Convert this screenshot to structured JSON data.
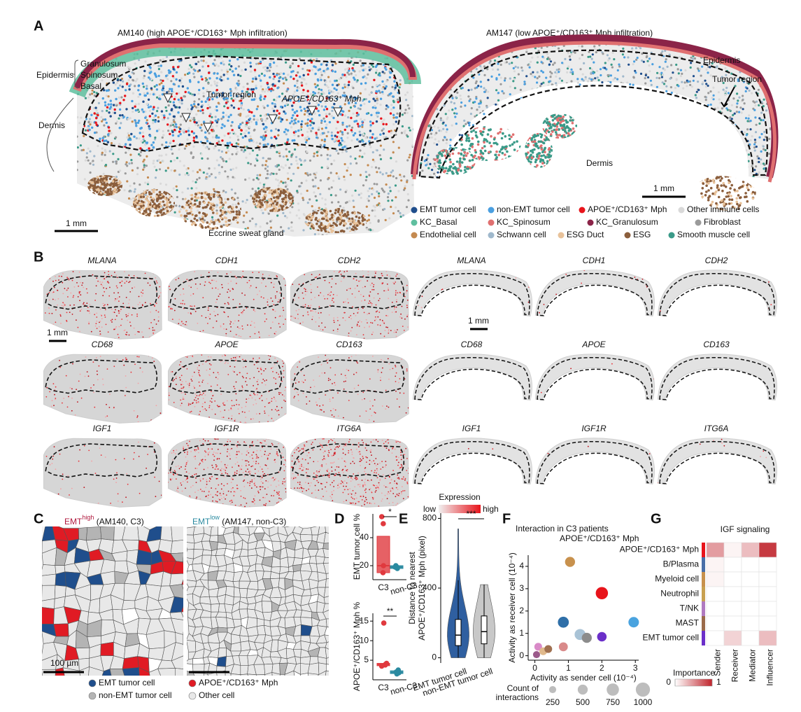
{
  "figure": {
    "panel_labels": [
      "A",
      "B",
      "C",
      "D",
      "E",
      "F",
      "G"
    ],
    "a": {
      "left_title": "AM140 (high APOE⁺/CD163⁺ Mph infiltration)",
      "right_title": "AM147 (low APOE⁺/CD163⁺ Mph infiltration)",
      "layers": [
        "Granulosum",
        "Spinosum",
        "Basal"
      ],
      "epidermis": "Epidermis",
      "dermis": "Dermis",
      "tumor_region": "Tumor region",
      "mph": "APOE⁺/CD163⁺ Mph",
      "sweat": "Eccrine sweat gland",
      "scale": "1 mm",
      "legend": [
        {
          "name": "EMT tumor cell",
          "color": "#1f4e8c"
        },
        {
          "name": "non-EMT tumor cell",
          "color": "#4a9fe0"
        },
        {
          "name": "APOE⁺/CD163⁺ Mph",
          "color": "#e8141b"
        },
        {
          "name": "Other immune cells",
          "color": "#d9d9d9"
        },
        {
          "name": "KC_Basal",
          "color": "#5fbf9f"
        },
        {
          "name": "KC_Spinosum",
          "color": "#e07070"
        },
        {
          "name": "KC_Granulosum",
          "color": "#8b2448"
        },
        {
          "name": "Fibroblast",
          "color": "#9a9a9a"
        },
        {
          "name": "Endothelial cell",
          "color": "#c48a50"
        },
        {
          "name": "Schwann cell",
          "color": "#9fb8cc"
        },
        {
          "name": "ESG Duct",
          "color": "#e8c29a"
        },
        {
          "name": "ESG",
          "color": "#8b5e3c"
        },
        {
          "name": "Smooth muscle cell",
          "color": "#3a9a88"
        }
      ]
    },
    "b": {
      "genes": [
        "MLANA",
        "CDH1",
        "CDH2",
        "CD68",
        "APOE",
        "CD163",
        "IGF1",
        "IGF1R",
        "ITG6A"
      ],
      "colorbar_title": "Expression",
      "low": "low",
      "high": "high"
    },
    "c": {
      "left_title": {
        "base": "EMT",
        "sup": "high",
        "rest": " (AM140, C3)",
        "color": "#b0193e"
      },
      "right_title": {
        "base": "EMT",
        "sup": "low",
        "rest": " (AM147, non-C3)",
        "color": "#2a8aa0"
      },
      "scale": "100 µm",
      "legend": [
        {
          "name": "EMT tumor cell",
          "color": "#1f4e8c"
        },
        {
          "name": "non-EMT tumor cell",
          "color": "#b4b4b4"
        },
        {
          "name": "APOE⁺/CD163⁺ Mph",
          "color": "#e01b24"
        },
        {
          "name": "Other cell",
          "color": "#e8e8e8"
        }
      ]
    }
  },
  "chart_data": [
    {
      "type": "strip_box",
      "ylabel": "EMT tumor cell %",
      "categories": [
        "C3",
        "non-C3"
      ],
      "colors": [
        "#e0393e",
        "#2a8aa0"
      ],
      "points": [
        [
          55,
          50,
          20,
          15
        ],
        [
          19,
          18,
          19,
          20
        ]
      ],
      "boxes": [
        {
          "q1": 15,
          "median": 20,
          "q3": 41
        },
        {
          "q1": 18,
          "median": 19,
          "q3": 20
        }
      ],
      "ylim": [
        10,
        57
      ],
      "yticks": [
        20,
        40
      ],
      "significance": "*"
    },
    {
      "type": "strip_box",
      "ylabel": "APOE⁺/CD163⁺ Mph %",
      "categories": [
        "C3",
        "non-C3"
      ],
      "colors": [
        "#e0393e",
        "#2a8aa0"
      ],
      "points": [
        [
          14.5,
          4,
          3.8,
          3.5,
          4.2
        ],
        [
          1.5,
          2,
          2.5,
          1.8
        ]
      ],
      "boxes": [
        {
          "q1": 3.6,
          "median": 3.9,
          "q3": 4.2
        },
        {
          "q1": 1.6,
          "median": 1.9,
          "q3": 2.3
        }
      ],
      "ylim": [
        0,
        17
      ],
      "yticks": [
        5,
        10,
        15
      ],
      "significance": "**"
    },
    {
      "type": "violin",
      "ylabel": [
        "Distance to nearest",
        "APOE⁺/CD163⁺ Mph (pixel)"
      ],
      "categories": [
        "EMT tumor cell",
        "non-EMT tumor cell"
      ],
      "colors": [
        "#2f5fa0",
        "#c8c8c8"
      ],
      "boxes": [
        {
          "min": 0,
          "q1": 70,
          "median": 130,
          "q3": 220,
          "max": 740
        },
        {
          "min": 0,
          "q1": 80,
          "median": 150,
          "q3": 240,
          "max": 420
        }
      ],
      "ylim": [
        -30,
        830
      ],
      "yticks": [
        0,
        400,
        800
      ],
      "significance": "***"
    },
    {
      "type": "scatter",
      "title": "Interaction in C3 patients",
      "xlabel": "Activity as sender cell (10⁻⁴)",
      "ylabel": "Activity as receiver cell (10⁻⁴)",
      "x": [
        1.05,
        2,
        0.85,
        2.95,
        1.35,
        1.55,
        2,
        0.85,
        0.1,
        0.25,
        0.4,
        0.05
      ],
      "y": [
        4.2,
        2.8,
        1.5,
        1.5,
        0.95,
        0.8,
        0.85,
        0.4,
        0.4,
        0.2,
        0.3,
        0.05
      ],
      "sizes": [
        500,
        750,
        600,
        550,
        600,
        500,
        450,
        400,
        300,
        300,
        300,
        250
      ],
      "colors": [
        "#c8914d",
        "#e8141b",
        "#2f6fa8",
        "#4aa3df",
        "#a9c3d6",
        "#8c8c8c",
        "#6b2fc9",
        "#d98a8a",
        "#d98ac8",
        "#e0b98c",
        "#a07050",
        "#9b5a8a"
      ],
      "annotation": "APOE⁺/CD163⁺ Mph",
      "annotation_color": "#e8141b",
      "xlim": [
        -0.2,
        3.1
      ],
      "ylim": [
        -0.2,
        4.5
      ],
      "xticks": [
        0,
        1,
        2,
        3
      ],
      "yticks": [
        0,
        1,
        2,
        3,
        4
      ],
      "size_legend_title": [
        "Count of",
        "interactions"
      ],
      "size_legend": [
        250,
        500,
        750,
        1000
      ]
    },
    {
      "type": "heatmap",
      "title": "IGF signaling",
      "rows": [
        "APOE⁺/CD163⁺ Mph",
        "B/Plasma",
        "Myeloid cell",
        "Neutrophil",
        "T/NK",
        "MAST",
        "EMT tumor cell"
      ],
      "row_colors": [
        "#e8141b",
        "#4a6fa8",
        "#c8914d",
        "#c8a050",
        "#b07ac0",
        "#9a6a4a",
        "#6b2fc9"
      ],
      "columns": [
        "Sender",
        "Receiver",
        "Mediator",
        "Influencer"
      ],
      "values": [
        [
          0.45,
          0.05,
          0.3,
          0.9
        ],
        [
          0.05,
          0,
          0,
          0
        ],
        [
          0.05,
          0,
          0,
          0
        ],
        [
          0,
          0,
          0,
          0
        ],
        [
          0,
          0,
          0,
          0
        ],
        [
          0,
          0,
          0,
          0
        ],
        [
          0,
          0.2,
          0,
          0.3
        ]
      ],
      "colorbar_title": "Importance",
      "colorbar_ticks": [
        0,
        1
      ],
      "color_high": "#c0242c"
    }
  ]
}
